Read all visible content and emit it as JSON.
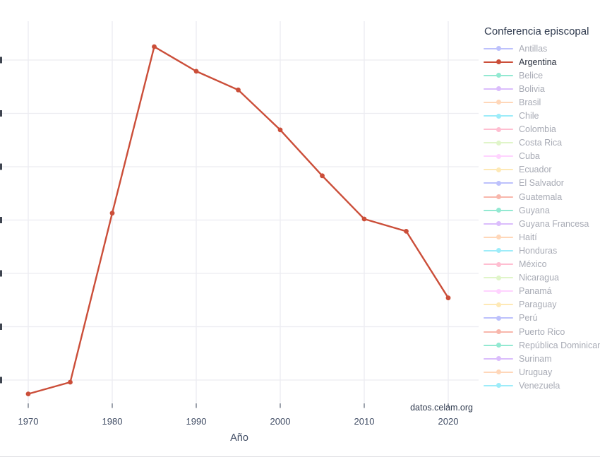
{
  "chart_data": {
    "type": "line",
    "title": "",
    "xlabel": "Año",
    "ylabel": "",
    "annotation": "datos.celam.org",
    "x_ticks": [
      "1970",
      "1980",
      "1990",
      "2000",
      "2010",
      "2020"
    ],
    "grid": true,
    "legend_position": "right",
    "y_axis": {
      "gridline_count": 7,
      "tick_labels_visible": false,
      "units": "gridline-units above bottom gridline (y-axis labels cropped out of frame)"
    },
    "series": [
      {
        "name": "Argentina",
        "color": "#cb4e39",
        "x": [
          1970,
          1975,
          1980,
          1985,
          1990,
          1995,
          2000,
          2005,
          2010,
          2015,
          2020
        ],
        "y": [
          -0.26,
          -0.04,
          3.13,
          6.25,
          5.79,
          5.44,
          4.69,
          3.83,
          3.02,
          2.79,
          1.54
        ]
      }
    ]
  },
  "legend": {
    "title": "Conferencia episcopal",
    "selected": "Argentina",
    "items": [
      {
        "label": "Antillas",
        "color": "#636EFA"
      },
      {
        "label": "Argentina",
        "color": "#cb4e39"
      },
      {
        "label": "Belice",
        "color": "#00CC96"
      },
      {
        "label": "Bolivia",
        "color": "#AB63FA"
      },
      {
        "label": "Brasil",
        "color": "#FFA15A"
      },
      {
        "label": "Chile",
        "color": "#19D3F3"
      },
      {
        "label": "Colombia",
        "color": "#FF6692"
      },
      {
        "label": "Costa Rica",
        "color": "#B6E880"
      },
      {
        "label": "Cuba",
        "color": "#FF97FF"
      },
      {
        "label": "Ecuador",
        "color": "#FECB52"
      },
      {
        "label": "El Salvador",
        "color": "#636EFA"
      },
      {
        "label": "Guatemala",
        "color": "#EF553B"
      },
      {
        "label": "Guyana",
        "color": "#00CC96"
      },
      {
        "label": "Guyana Francesa",
        "color": "#AB63FA"
      },
      {
        "label": "Haití",
        "color": "#FFA15A"
      },
      {
        "label": "Honduras",
        "color": "#19D3F3"
      },
      {
        "label": "México",
        "color": "#FF6692"
      },
      {
        "label": "Nicaragua",
        "color": "#B6E880"
      },
      {
        "label": "Panamá",
        "color": "#FF97FF"
      },
      {
        "label": "Paraguay",
        "color": "#FECB52"
      },
      {
        "label": "Perú",
        "color": "#636EFA"
      },
      {
        "label": "Puerto Rico",
        "color": "#EF553B"
      },
      {
        "label": "República Dominicana",
        "color": "#00CC96"
      },
      {
        "label": "Surinam",
        "color": "#AB63FA"
      },
      {
        "label": "Uruguay",
        "color": "#FFA15A"
      },
      {
        "label": "Venezuela",
        "color": "#19D3F3"
      }
    ]
  },
  "colors": {
    "background": "#ffffff",
    "gridline": "#ececf1",
    "axis_text": "#3f4b63",
    "legend_title_text": "#2f3a4e",
    "legend_active_text": "#2e3442",
    "legend_muted_text": "#a8abb5",
    "x_tick_mark": "#5b6576",
    "y_label_fragment": "#3f4550",
    "divider": "#dddde2"
  }
}
